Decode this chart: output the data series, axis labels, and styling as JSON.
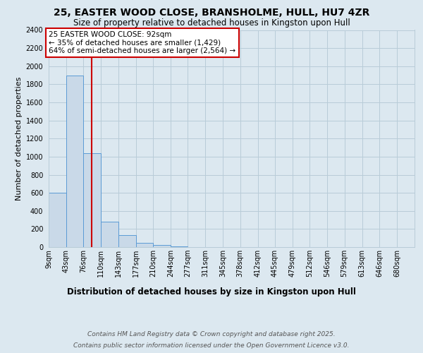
{
  "title": "25, EASTER WOOD CLOSE, BRANSHOLME, HULL, HU7 4ZR",
  "subtitle": "Size of property relative to detached houses in Kingston upon Hull",
  "xlabel": "Distribution of detached houses by size in Kingston upon Hull",
  "ylabel": "Number of detached properties",
  "footer_line1": "Contains HM Land Registry data © Crown copyright and database right 2025.",
  "footer_line2": "Contains public sector information licensed under the Open Government Licence v3.0.",
  "bin_edges": [
    9,
    43,
    76,
    110,
    143,
    177,
    210,
    244,
    277,
    311,
    345,
    378,
    412,
    445,
    479,
    512,
    546,
    579,
    613,
    646,
    680
  ],
  "bar_heights": [
    600,
    1900,
    1040,
    280,
    130,
    50,
    20,
    5,
    0,
    0,
    0,
    0,
    0,
    0,
    0,
    0,
    0,
    0,
    0,
    0
  ],
  "bar_color": "#c9d9e8",
  "bar_edge_color": "#5b9bd5",
  "vline_x": 92,
  "vline_color": "#cc0000",
  "annotation_line1": "25 EASTER WOOD CLOSE: 92sqm",
  "annotation_line2": "← 35% of detached houses are smaller (1,429)",
  "annotation_line3": "64% of semi-detached houses are larger (2,564) →",
  "annotation_box_edgecolor": "#cc0000",
  "ylim": [
    0,
    2400
  ],
  "yticks": [
    0,
    200,
    400,
    600,
    800,
    1000,
    1200,
    1400,
    1600,
    1800,
    2000,
    2200,
    2400
  ],
  "grid_color": "#b8ccd8",
  "bg_color": "#dce8f0",
  "title_fontsize": 10,
  "subtitle_fontsize": 8.5,
  "axis_ylabel_fontsize": 8,
  "xlabel_fontsize": 8.5,
  "tick_fontsize": 7,
  "footer_fontsize": 6.5,
  "annotation_fontsize": 7.5
}
